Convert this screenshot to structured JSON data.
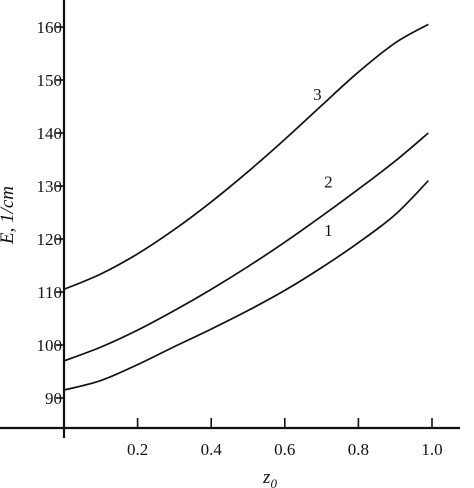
{
  "chart_data": {
    "type": "line",
    "xlabel": "z",
    "xlabel_subscript": "0",
    "ylabel": "E, 1/cm",
    "xlim": [
      0,
      1.0
    ],
    "ylim": [
      84,
      166
    ],
    "x_ticks": [
      0.2,
      0.4,
      0.6,
      0.8,
      1.0
    ],
    "x_tick_labels": [
      "0.2",
      "0.4",
      "0.6",
      "0.8",
      "1.0"
    ],
    "y_ticks": [
      90,
      100,
      110,
      120,
      130,
      140,
      150,
      160
    ],
    "y_tick_labels": [
      "90",
      "100",
      "110",
      "120",
      "130",
      "140",
      "150",
      "160"
    ],
    "grid": false,
    "legend": "none",
    "series": [
      {
        "name": "1",
        "x": [
          0.0,
          0.1,
          0.2,
          0.3,
          0.4,
          0.5,
          0.6,
          0.7,
          0.8,
          0.9,
          0.99
        ],
        "y": [
          91.5,
          93.3,
          96.3,
          99.7,
          103.0,
          106.5,
          110.3,
          114.6,
          119.3,
          124.6,
          131.0
        ],
        "label_at": [
          0.73,
          119.8
        ]
      },
      {
        "name": "2",
        "x": [
          0.0,
          0.1,
          0.2,
          0.3,
          0.4,
          0.5,
          0.6,
          0.7,
          0.8,
          0.9,
          0.99
        ],
        "y": [
          97.0,
          99.6,
          102.8,
          106.5,
          110.5,
          114.8,
          119.4,
          124.3,
          129.4,
          134.7,
          140.0
        ],
        "label_at": [
          0.73,
          129.0
        ]
      },
      {
        "name": "3",
        "x": [
          0.0,
          0.1,
          0.2,
          0.3,
          0.4,
          0.5,
          0.6,
          0.7,
          0.8,
          0.9,
          0.99
        ],
        "y": [
          110.5,
          113.4,
          117.2,
          121.8,
          127.0,
          132.7,
          138.8,
          145.2,
          151.5,
          157.0,
          160.5
        ],
        "label_at": [
          0.7,
          145.5
        ]
      }
    ]
  }
}
